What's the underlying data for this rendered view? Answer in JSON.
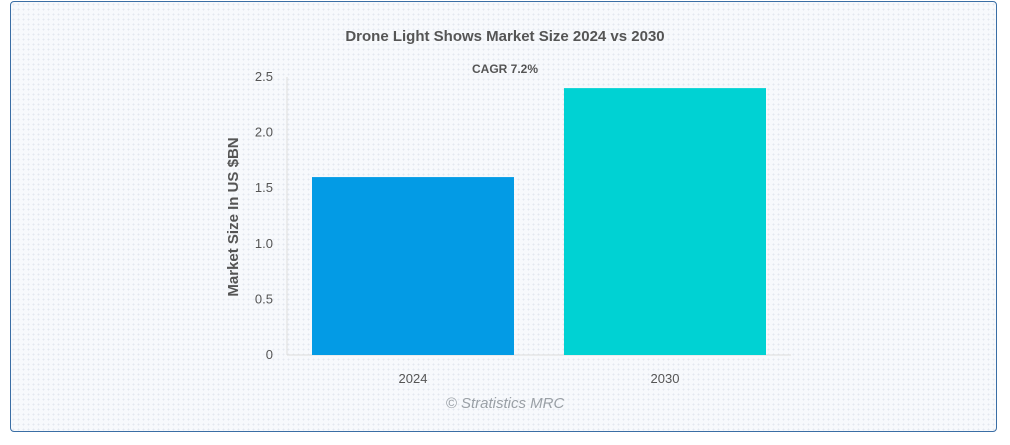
{
  "chart_data": {
    "type": "bar",
    "title": "Drone Light Shows Market Size 2024 vs 2030",
    "subtitle": "CAGR 7.2%",
    "categories": [
      "2024",
      "2030"
    ],
    "values": [
      1.6,
      2.4
    ],
    "colors": [
      "#039be5",
      "#00d2d3"
    ],
    "xlabel": "",
    "ylabel": "Market Size In US $BN",
    "ylim": [
      0,
      2.5
    ],
    "yticks": [
      "0",
      "0.5",
      "1.0",
      "1.5",
      "2.0",
      "2.5"
    ],
    "yticks_values": [
      0,
      0.5,
      1.0,
      1.5,
      2.0,
      2.5
    ],
    "grid": false,
    "legend": "none"
  },
  "watermark": "© Stratistics MRC"
}
